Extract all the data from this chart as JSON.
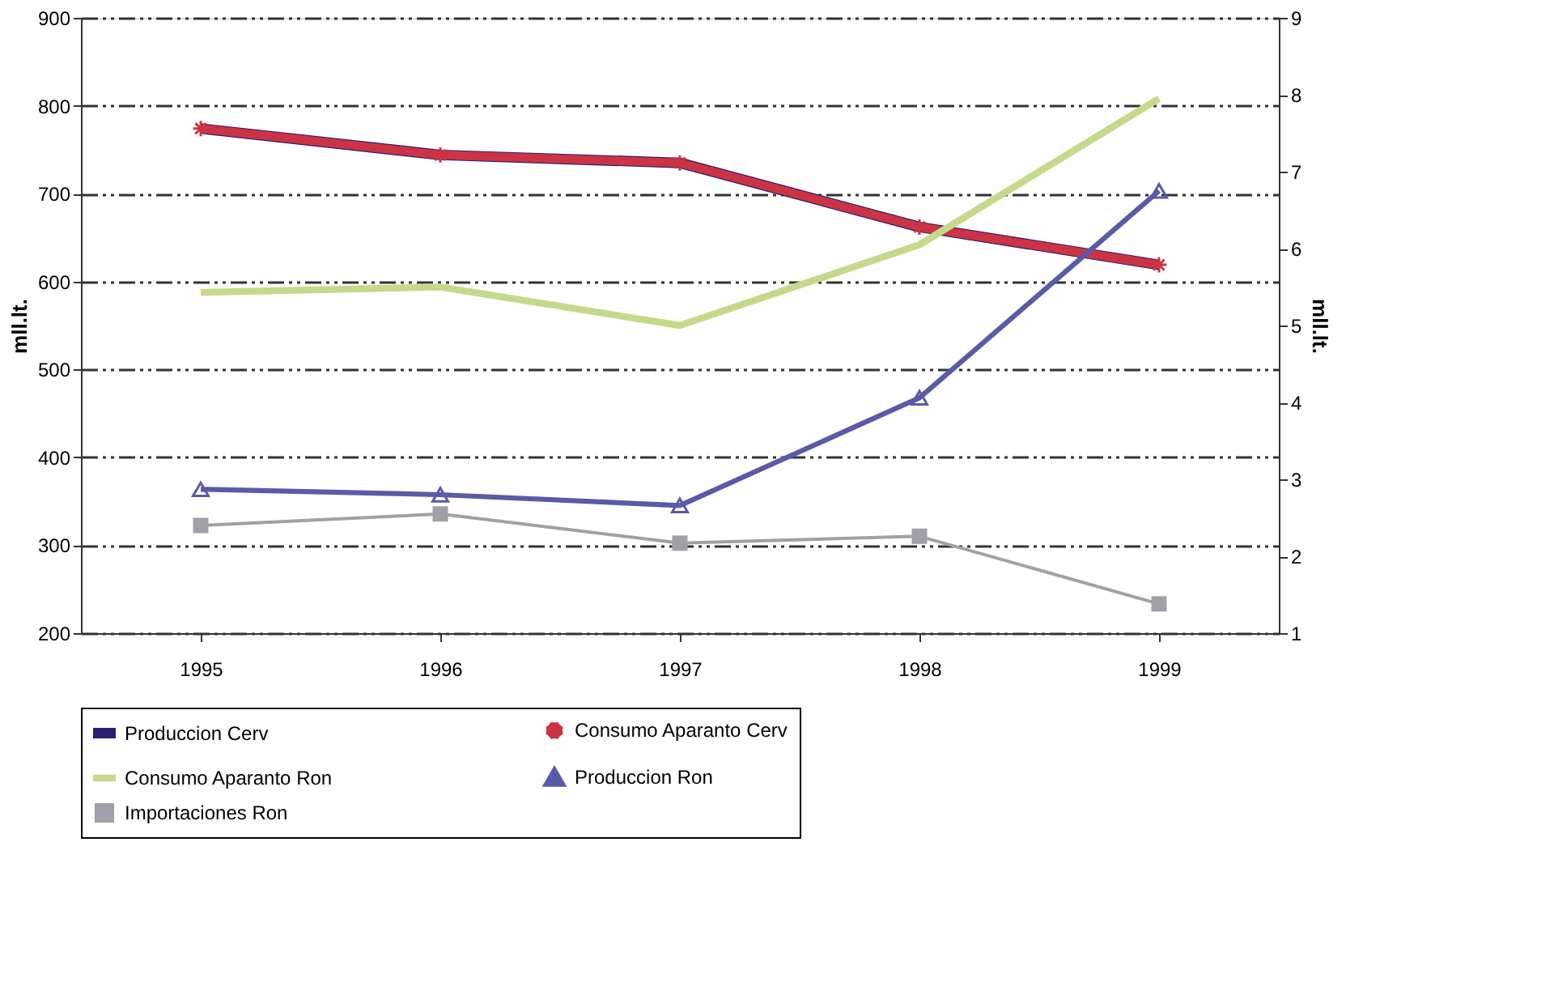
{
  "chart_data": {
    "type": "line",
    "categories": [
      "1995",
      "1996",
      "1997",
      "1998",
      "1999"
    ],
    "ylabel": "mll.lt.",
    "y2label": "mll.lt.",
    "ylim": [
      200,
      900
    ],
    "yticks": [
      200,
      300,
      400,
      500,
      600,
      700,
      800,
      900
    ],
    "y2lim": [
      1,
      9
    ],
    "y2ticks": [
      1,
      2,
      3,
      4,
      5,
      6,
      7,
      8,
      9
    ],
    "grid": "y",
    "legend": "bottom",
    "series": [
      {
        "name": "Produccion Cerv",
        "color": "#2b2070",
        "values": [
          774,
          744,
          735,
          662,
          619
        ],
        "marker": "none"
      },
      {
        "name": "Consumo Aparanto Cerv",
        "color": "#cc3344",
        "values": [
          774,
          744,
          735,
          662,
          619
        ],
        "marker": "cross"
      },
      {
        "name": "Consumo Aparanto Ron",
        "color": "#c5d98a",
        "values": [
          5.43,
          5.5,
          5.0,
          6.05,
          7.95
        ],
        "marker": "none",
        "axis": "y2"
      },
      {
        "name": "Produccion Ron",
        "color": "#5a5aa8",
        "values": [
          2.87,
          2.8,
          2.66,
          4.06,
          6.75
        ],
        "marker": "triangle",
        "axis": "y2"
      },
      {
        "name": "Importaciones Ron",
        "color": "#a0a0a8",
        "values": [
          2.4,
          2.55,
          2.17,
          2.26,
          1.38
        ],
        "marker": "square",
        "axis": "y2"
      }
    ]
  }
}
